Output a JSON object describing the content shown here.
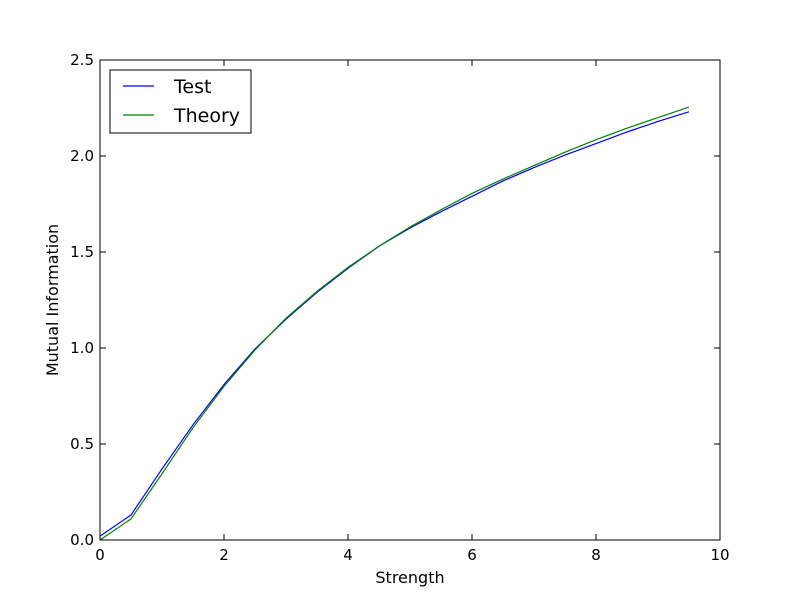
{
  "chart_data": {
    "type": "line",
    "xlabel": "Strength",
    "ylabel": "Mutual Information",
    "xlim": [
      0,
      10
    ],
    "ylim": [
      0,
      2.5
    ],
    "xticks": [
      0,
      2,
      4,
      6,
      8,
      10
    ],
    "xtick_labels": [
      "0",
      "2",
      "4",
      "6",
      "8",
      "10"
    ],
    "yticks": [
      0,
      0.5,
      1.0,
      1.5,
      2.0,
      2.5
    ],
    "ytick_labels": [
      "0.0",
      "0.5",
      "1.0",
      "1.5",
      "2.0",
      "2.5"
    ],
    "grid": false,
    "legend_position": "top-left",
    "x": [
      0,
      0.5,
      1.0,
      1.5,
      2.0,
      2.5,
      3.0,
      3.5,
      4.0,
      4.5,
      5.0,
      5.5,
      6.0,
      6.5,
      7.0,
      7.5,
      8.0,
      8.5,
      9.0,
      9.5
    ],
    "series": [
      {
        "name": "Test",
        "color": "#0000ff",
        "values": [
          0.02,
          0.13,
          0.37,
          0.6,
          0.81,
          0.995,
          1.15,
          1.29,
          1.415,
          1.53,
          1.625,
          1.71,
          1.79,
          1.87,
          1.94,
          2.005,
          2.065,
          2.125,
          2.18,
          2.23
        ]
      },
      {
        "name": "Theory",
        "color": "#008000",
        "values": [
          0.0,
          0.11,
          0.345,
          0.585,
          0.8,
          0.99,
          1.155,
          1.295,
          1.42,
          1.53,
          1.63,
          1.72,
          1.805,
          1.88,
          1.95,
          2.02,
          2.085,
          2.145,
          2.2,
          2.255
        ]
      }
    ]
  }
}
